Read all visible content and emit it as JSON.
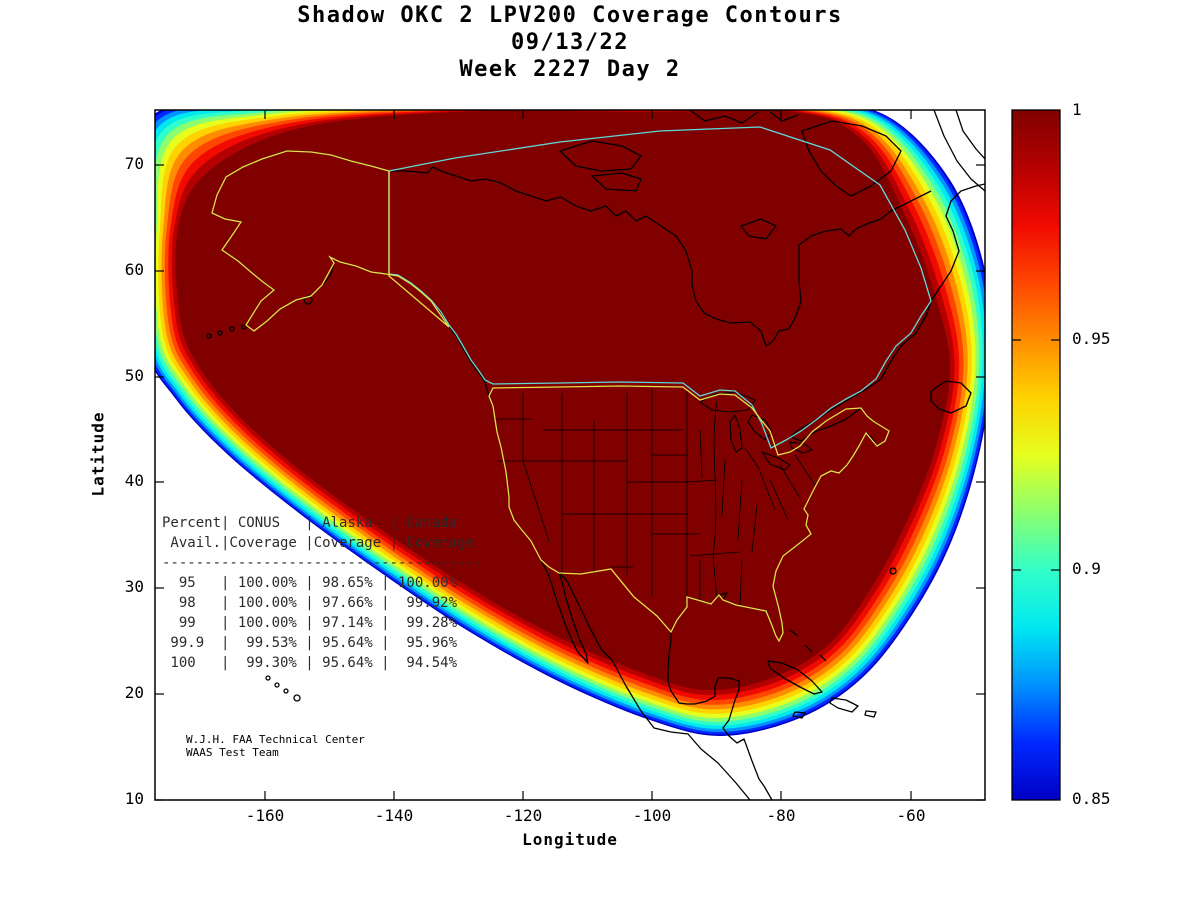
{
  "title": {
    "line1": "Shadow OKC 2 LPV200 Coverage Contours",
    "line2": "09/13/22",
    "line3": "Week 2227 Day 2"
  },
  "axes": {
    "xlabel": "Longitude",
    "ylabel": "Latitude",
    "xtick_labels": [
      "-160",
      "-140",
      "-120",
      "-100",
      "-80",
      "-60"
    ],
    "ytick_labels": [
      "70",
      "60",
      "50",
      "40",
      "30",
      "20",
      "10"
    ]
  },
  "colorbar": {
    "tick_labels": [
      "1",
      "0.95",
      "0.9",
      "0.85"
    ]
  },
  "table": {
    "lines": [
      "Percent| CONUS   | Alaska  | Canada",
      " Avail.|Coverage |Coverage | Coverage",
      "--------------------------------------",
      "  95   | 100.00% | 98.65% | 100.00%",
      "  98   | 100.00% | 97.66% |  99.92%",
      "  99   | 100.00% | 97.14% |  99.28%",
      " 99.9  |  99.53% | 95.64% |  95.96%",
      " 100   |  99.30% | 95.64% |  94.54%"
    ]
  },
  "credit": {
    "line1": "W.J.H. FAA Technical Center",
    "line2": "WAAS Test Team"
  },
  "chart_data": {
    "type": "heatmap",
    "title": "Shadow OKC 2 LPV200 Coverage Contours",
    "subtitle": [
      "09/13/22",
      "Week 2227 Day 2"
    ],
    "xlabel": "Longitude",
    "ylabel": "Latitude",
    "xlim": [
      -177,
      -48
    ],
    "ylim": [
      10,
      75.5
    ],
    "xticks": [
      -160,
      -140,
      -120,
      -100,
      -80,
      -60
    ],
    "yticks": [
      10,
      20,
      30,
      40,
      50,
      60,
      70
    ],
    "grid": false,
    "colorbar": {
      "min": 0.85,
      "max": 1,
      "ticks": [
        0.85,
        0.9,
        0.95,
        1
      ],
      "colormap": "jet",
      "colors": [
        "#0000C4",
        "#0028FF",
        "#0092FF",
        "#00E8F0",
        "#32FFC8",
        "#8CFF6E",
        "#E6FF1E",
        "#FFD200",
        "#FF8C00",
        "#FF4600",
        "#F00A00",
        "#B40000",
        "#800000"
      ]
    },
    "contour_levels": [
      0.85,
      0.8625,
      0.875,
      0.8875,
      0.9,
      0.9125,
      0.925,
      0.9375,
      0.95,
      0.9625,
      0.975,
      0.9875,
      1.0
    ],
    "description": "LPV200 coverage availability contours over North America; availability ~1.0 (dark red) across CONUS, Canada and Alaska interiors, decreasing through jet-colormap bands to 0.85 (blue) at the outer edge of the WAAS coverage region",
    "coverage_table": {
      "columns": [
        "Percent Avail.",
        "CONUS Coverage",
        "Alaska Coverage",
        "Canada Coverage"
      ],
      "rows": [
        [
          "95",
          "100.00%",
          "98.65%",
          "100.00%"
        ],
        [
          "98",
          "100.00%",
          "97.66%",
          "99.92%"
        ],
        [
          "99",
          "100.00%",
          "97.14%",
          "99.28%"
        ],
        [
          "99.9",
          "99.53%",
          "95.64%",
          "95.96%"
        ],
        [
          "100",
          "99.30%",
          "95.64%",
          "94.54%"
        ]
      ]
    }
  }
}
